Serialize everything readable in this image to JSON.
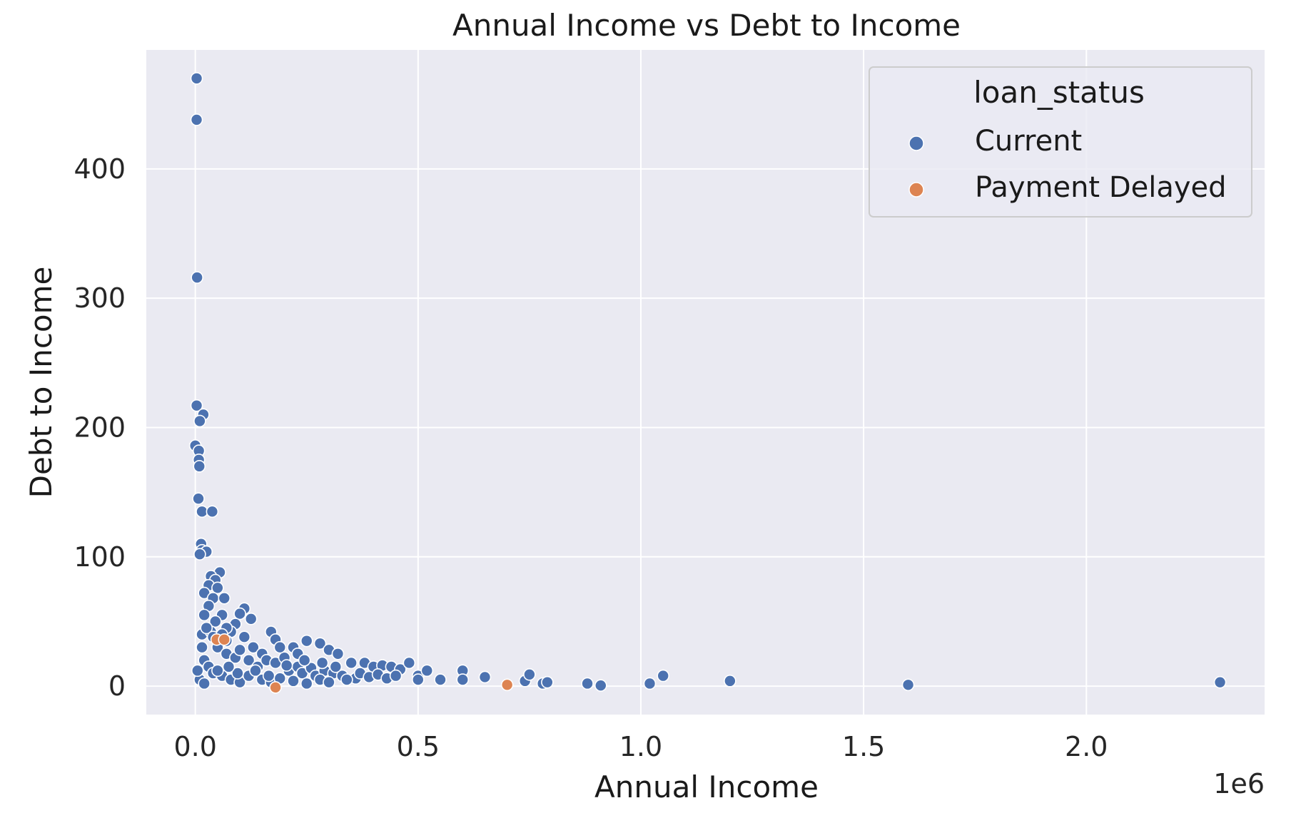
{
  "chart_data": {
    "type": "scatter",
    "title": "Annual Income vs Debt to Income",
    "xlabel": "Annual Income",
    "ylabel": "Debt to Income",
    "x_offset_label": "1e6",
    "xlim": [
      -0.11,
      2.4
    ],
    "ylim": [
      -22,
      492
    ],
    "x_ticks": [
      0.0,
      0.5,
      1.0,
      1.5,
      2.0
    ],
    "x_tick_labels": [
      "0.0",
      "0.5",
      "1.0",
      "1.5",
      "2.0"
    ],
    "y_ticks": [
      0,
      100,
      200,
      300,
      400
    ],
    "y_tick_labels": [
      "0",
      "100",
      "200",
      "300",
      "400"
    ],
    "grid": true,
    "background": "#eaeaf2",
    "legend": {
      "title": "loan_status",
      "placement": "top-right"
    },
    "series": [
      {
        "name": "Current",
        "color": "#4c72b0",
        "points": [
          [
            0.003,
            470
          ],
          [
            0.003,
            438
          ],
          [
            0.004,
            316
          ],
          [
            0.003,
            217
          ],
          [
            0.018,
            210
          ],
          [
            0.01,
            205
          ],
          [
            0.0,
            186
          ],
          [
            0.008,
            182
          ],
          [
            0.008,
            175
          ],
          [
            0.009,
            170
          ],
          [
            0.007,
            145
          ],
          [
            0.015,
            135
          ],
          [
            0.038,
            135
          ],
          [
            0.013,
            110
          ],
          [
            0.015,
            105
          ],
          [
            0.025,
            104
          ],
          [
            0.01,
            102
          ],
          [
            0.055,
            88
          ],
          [
            0.035,
            85
          ],
          [
            0.045,
            82
          ],
          [
            0.03,
            78
          ],
          [
            0.05,
            76
          ],
          [
            0.02,
            72
          ],
          [
            0.04,
            68
          ],
          [
            0.065,
            68
          ],
          [
            0.11,
            60
          ],
          [
            0.125,
            52
          ],
          [
            0.1,
            56
          ],
          [
            0.09,
            48
          ],
          [
            0.03,
            62
          ],
          [
            0.06,
            55
          ],
          [
            0.08,
            42
          ],
          [
            0.02,
            55
          ],
          [
            0.045,
            50
          ],
          [
            0.07,
            45
          ],
          [
            0.015,
            40
          ],
          [
            0.035,
            42
          ],
          [
            0.17,
            42
          ],
          [
            0.18,
            36
          ],
          [
            0.22,
            30
          ],
          [
            0.25,
            35
          ],
          [
            0.28,
            33
          ],
          [
            0.3,
            28
          ],
          [
            0.32,
            25
          ],
          [
            0.35,
            18
          ],
          [
            0.38,
            18
          ],
          [
            0.4,
            15
          ],
          [
            0.42,
            16
          ],
          [
            0.44,
            15
          ],
          [
            0.46,
            13
          ],
          [
            0.48,
            18
          ],
          [
            0.5,
            8
          ],
          [
            0.52,
            12
          ],
          [
            0.5,
            5
          ],
          [
            0.55,
            5
          ],
          [
            0.6,
            12
          ],
          [
            0.6,
            5
          ],
          [
            0.65,
            7
          ],
          [
            0.74,
            4
          ],
          [
            0.75,
            9
          ],
          [
            0.78,
            2
          ],
          [
            0.79,
            3
          ],
          [
            0.88,
            2
          ],
          [
            0.91,
            0.5
          ],
          [
            1.02,
            2
          ],
          [
            1.05,
            8
          ],
          [
            1.2,
            4
          ],
          [
            1.6,
            1
          ],
          [
            2.3,
            3
          ],
          [
            0.05,
            30
          ],
          [
            0.07,
            25
          ],
          [
            0.09,
            22
          ],
          [
            0.1,
            28
          ],
          [
            0.12,
            20
          ],
          [
            0.13,
            30
          ],
          [
            0.15,
            25
          ],
          [
            0.14,
            15
          ],
          [
            0.16,
            20
          ],
          [
            0.18,
            18
          ],
          [
            0.2,
            22
          ],
          [
            0.21,
            12
          ],
          [
            0.23,
            15
          ],
          [
            0.24,
            10
          ],
          [
            0.26,
            14
          ],
          [
            0.27,
            8
          ],
          [
            0.29,
            12
          ],
          [
            0.31,
            10
          ],
          [
            0.33,
            8
          ],
          [
            0.36,
            6
          ],
          [
            0.02,
            20
          ],
          [
            0.03,
            15
          ],
          [
            0.04,
            10
          ],
          [
            0.06,
            8
          ],
          [
            0.08,
            5
          ],
          [
            0.1,
            3
          ],
          [
            0.12,
            8
          ],
          [
            0.15,
            5
          ],
          [
            0.17,
            3
          ],
          [
            0.19,
            6
          ],
          [
            0.22,
            4
          ],
          [
            0.25,
            2
          ],
          [
            0.28,
            5
          ],
          [
            0.3,
            3
          ],
          [
            0.34,
            5
          ],
          [
            0.01,
            5
          ],
          [
            0.02,
            2
          ],
          [
            0.05,
            12
          ],
          [
            0.07,
            35
          ],
          [
            0.11,
            38
          ],
          [
            0.19,
            30
          ],
          [
            0.23,
            25
          ],
          [
            0.095,
            10
          ],
          [
            0.135,
            12
          ],
          [
            0.165,
            8
          ],
          [
            0.205,
            16
          ],
          [
            0.245,
            20
          ],
          [
            0.285,
            18
          ],
          [
            0.315,
            15
          ],
          [
            0.37,
            10
          ],
          [
            0.39,
            7
          ],
          [
            0.41,
            9
          ],
          [
            0.43,
            6
          ],
          [
            0.45,
            8
          ],
          [
            0.005,
            12
          ],
          [
            0.015,
            30
          ],
          [
            0.025,
            45
          ],
          [
            0.04,
            38
          ],
          [
            0.06,
            40
          ],
          [
            0.075,
            15
          ]
        ]
      },
      {
        "name": "Payment Delayed",
        "color": "#dd8452",
        "points": [
          [
            0.048,
            36
          ],
          [
            0.065,
            36
          ],
          [
            0.7,
            1
          ],
          [
            0.18,
            -1
          ]
        ]
      }
    ]
  }
}
